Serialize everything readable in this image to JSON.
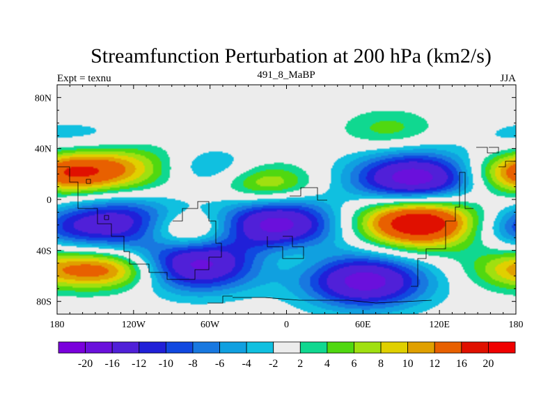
{
  "chart_data": {
    "type": "heatmap",
    "title": "Streamfunction Perturbation at 200 hPa (km2/s)",
    "left_string": "Expt = texnu",
    "center_string": "491_8_MaBP",
    "right_string": "JJA",
    "xlim": [
      -180,
      180
    ],
    "ylim": [
      -90,
      90
    ],
    "x_ticks": [
      {
        "value": -180,
        "label": "180"
      },
      {
        "value": -120,
        "label": "120W"
      },
      {
        "value": -60,
        "label": "60W"
      },
      {
        "value": 0,
        "label": "0"
      },
      {
        "value": 60,
        "label": "60E"
      },
      {
        "value": 120,
        "label": "120E"
      },
      {
        "value": 180,
        "label": "180"
      }
    ],
    "y_ticks": [
      {
        "value": 80,
        "label": "80N"
      },
      {
        "value": 40,
        "label": "40N"
      },
      {
        "value": 0,
        "label": "0"
      },
      {
        "value": -40,
        "label": "40S"
      },
      {
        "value": -80,
        "label": "80S"
      }
    ],
    "levels": [
      -20,
      -16,
      -12,
      -10,
      -8,
      -6,
      -4,
      -2,
      2,
      4,
      6,
      8,
      10,
      12,
      16,
      20
    ],
    "colorbar_labels": [
      "-20",
      "-16",
      "-12",
      "-10",
      "-8",
      "-6",
      "-4",
      "-2",
      "2",
      "4",
      "6",
      "8",
      "10",
      "12",
      "16",
      "20"
    ],
    "colors": [
      "#7a00dc",
      "#6a10dc",
      "#5020d8",
      "#2020d8",
      "#1048e0",
      "#1878e0",
      "#10a0e0",
      "#10c0e0",
      "#ececec",
      "#10d890",
      "#50d810",
      "#a0e010",
      "#e0d000",
      "#e0a000",
      "#e86000",
      "#e01000",
      "#f00000"
    ],
    "anomalies": [
      {
        "sign": "negative",
        "center_lon": 100,
        "center_lat": 15,
        "peak": -20
      },
      {
        "sign": "negative",
        "center_lon": -7,
        "center_lat": -20,
        "peak": -18
      },
      {
        "sign": "negative",
        "center_lon": -130,
        "center_lat": -18,
        "peak": -14
      },
      {
        "sign": "negative",
        "center_lon": -70,
        "center_lat": -51,
        "peak": -17
      },
      {
        "sign": "negative",
        "center_lon": 62,
        "center_lat": -64,
        "peak": -18
      },
      {
        "sign": "negative",
        "center_lon": -60,
        "center_lat": 25,
        "peak": -5
      },
      {
        "sign": "negative",
        "center_lon": -140,
        "center_lat": 45,
        "peak": -4
      },
      {
        "sign": "negative",
        "center_lon": 180,
        "center_lat": 48,
        "peak": -3
      },
      {
        "sign": "negative",
        "center_lon": 180,
        "center_lat": -22,
        "peak": -6
      },
      {
        "sign": "positive",
        "center_lon": 103,
        "center_lat": -17,
        "peak": 22
      },
      {
        "sign": "positive",
        "center_lon": -140,
        "center_lat": 25,
        "peak": 13
      },
      {
        "sign": "positive",
        "center_lon": -135,
        "center_lat": -55,
        "peak": 12
      },
      {
        "sign": "positive",
        "center_lon": -78,
        "center_lat": -25,
        "peak": 10
      },
      {
        "sign": "positive",
        "center_lon": 80,
        "center_lat": 55,
        "peak": 5
      },
      {
        "sign": "positive",
        "center_lon": -15,
        "center_lat": 12,
        "peak": 9
      },
      {
        "sign": "positive",
        "center_lon": 180,
        "center_lat": 20,
        "peak": 10
      },
      {
        "sign": "positive",
        "center_lon": 180,
        "center_lat": -55,
        "peak": 9
      },
      {
        "sign": "positive",
        "center_lon": 0,
        "center_lat": -42,
        "peak": 4
      }
    ]
  }
}
